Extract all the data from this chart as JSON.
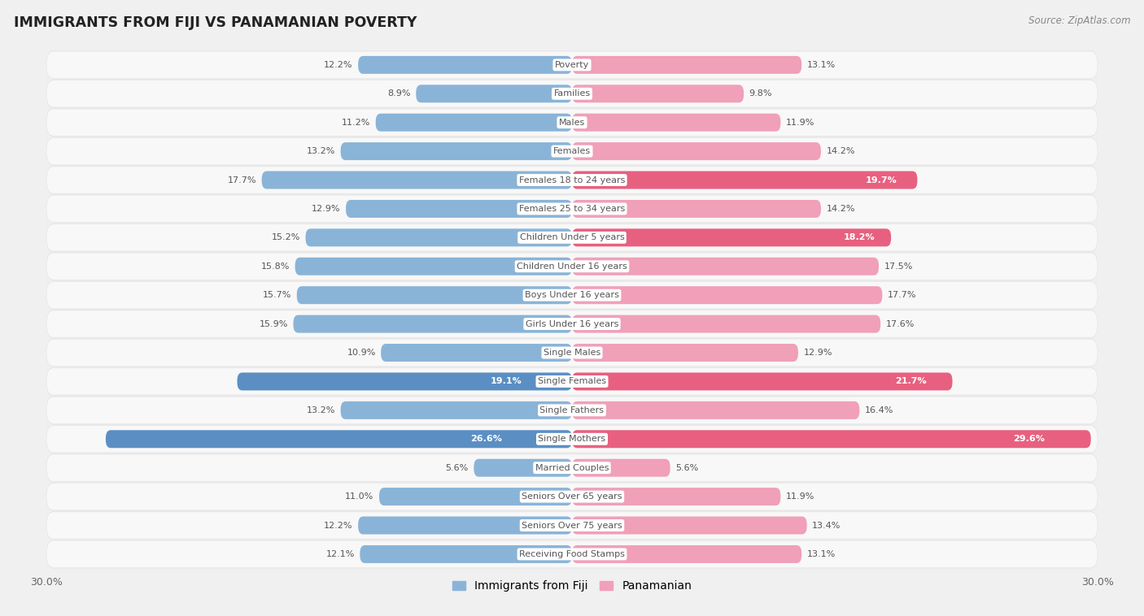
{
  "title": "IMMIGRANTS FROM FIJI VS PANAMANIAN POVERTY",
  "source": "Source: ZipAtlas.com",
  "categories": [
    "Poverty",
    "Families",
    "Males",
    "Females",
    "Females 18 to 24 years",
    "Females 25 to 34 years",
    "Children Under 5 years",
    "Children Under 16 years",
    "Boys Under 16 years",
    "Girls Under 16 years",
    "Single Males",
    "Single Females",
    "Single Fathers",
    "Single Mothers",
    "Married Couples",
    "Seniors Over 65 years",
    "Seniors Over 75 years",
    "Receiving Food Stamps"
  ],
  "fiji_values": [
    12.2,
    8.9,
    11.2,
    13.2,
    17.7,
    12.9,
    15.2,
    15.8,
    15.7,
    15.9,
    10.9,
    19.1,
    13.2,
    26.6,
    5.6,
    11.0,
    12.2,
    12.1
  ],
  "panama_values": [
    13.1,
    9.8,
    11.9,
    14.2,
    19.7,
    14.2,
    18.2,
    17.5,
    17.7,
    17.6,
    12.9,
    21.7,
    16.4,
    29.6,
    5.6,
    11.9,
    13.4,
    13.1
  ],
  "fiji_color": "#8ab4d7",
  "panama_color": "#f0a0b8",
  "fiji_highlight_indices": [
    11,
    13
  ],
  "panama_highlight_indices": [
    4,
    6,
    11,
    13
  ],
  "fiji_highlight_color": "#5b8fc4",
  "panama_highlight_color": "#e86080",
  "row_bg_color": "#e8e8e8",
  "row_inner_color": "#f8f8f8",
  "max_value": 30.0,
  "legend_fiji": "Immigrants from Fiji",
  "legend_panama": "Panamanian",
  "label_color_normal": "#555555",
  "label_color_highlight": "#ffffff",
  "cat_label_color": "#555555",
  "background_color": "#f0f0f0"
}
